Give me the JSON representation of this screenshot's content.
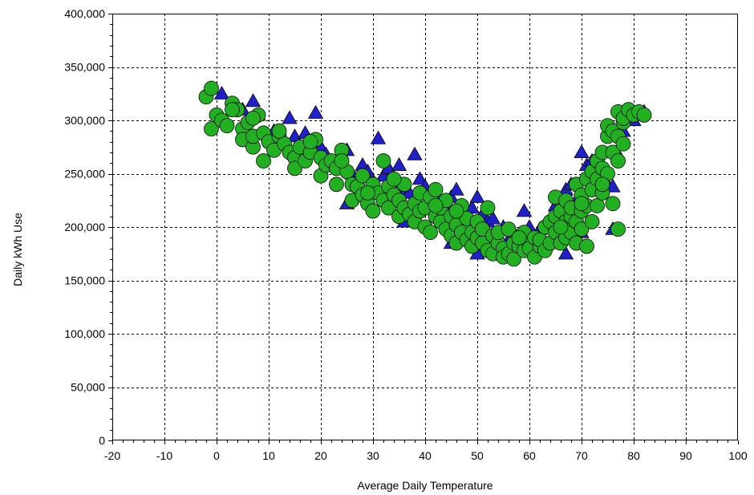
{
  "chart_data": {
    "type": "scatter",
    "title": "",
    "xlabel": "Average Daily Temperature",
    "ylabel": "Daily kWh Use",
    "xlim": [
      -20,
      100
    ],
    "ylim": [
      0,
      400000
    ],
    "x_ticks": [
      -20,
      -10,
      0,
      10,
      20,
      30,
      40,
      50,
      60,
      70,
      80,
      90,
      100
    ],
    "x_tick_labels": [
      "-20",
      "-10",
      "0",
      "10",
      "20",
      "30",
      "40",
      "50",
      "60",
      "70",
      "80",
      "90",
      "100"
    ],
    "y_ticks": [
      0,
      50000,
      100000,
      150000,
      200000,
      250000,
      300000,
      350000,
      400000
    ],
    "y_tick_labels": [
      "0",
      "50,000",
      "100,000",
      "150,000",
      "200,000",
      "250,000",
      "300,000",
      "350,000",
      "400,000"
    ],
    "grid": true,
    "legend": "none",
    "colors": {
      "series_a": "#2020c8",
      "series_b": "#22b022",
      "marker_stroke": "#0a0a0a",
      "grid": "#000000"
    },
    "series": [
      {
        "marker": "triangle",
        "color": "#2020c8",
        "points": [
          [
            -1,
            330000
          ],
          [
            1,
            325000
          ],
          [
            3,
            315000
          ],
          [
            5,
            310000
          ],
          [
            7,
            318000
          ],
          [
            8,
            305000
          ],
          [
            10,
            285000
          ],
          [
            11,
            290000
          ],
          [
            12,
            280000
          ],
          [
            14,
            302000
          ],
          [
            15,
            285000
          ],
          [
            17,
            288000
          ],
          [
            19,
            307000
          ],
          [
            20,
            275000
          ],
          [
            21,
            268000
          ],
          [
            23,
            262000
          ],
          [
            24,
            255000
          ],
          [
            25,
            272000
          ],
          [
            26,
            250000
          ],
          [
            27,
            245000
          ],
          [
            28,
            258000
          ],
          [
            29,
            252000
          ],
          [
            30,
            240000
          ],
          [
            31,
            283000
          ],
          [
            32,
            248000
          ],
          [
            33,
            255000
          ],
          [
            34,
            242000
          ],
          [
            35,
            258000
          ],
          [
            36,
            235000
          ],
          [
            37,
            232000
          ],
          [
            38,
            268000
          ],
          [
            39,
            245000
          ],
          [
            40,
            238000
          ],
          [
            41,
            225000
          ],
          [
            42,
            230000
          ],
          [
            43,
            222000
          ],
          [
            44,
            218000
          ],
          [
            45,
            228000
          ],
          [
            46,
            235000
          ],
          [
            47,
            215000
          ],
          [
            48,
            210000
          ],
          [
            49,
            218000
          ],
          [
            50,
            228000
          ],
          [
            51,
            212000
          ],
          [
            52,
            205000
          ],
          [
            53,
            208000
          ],
          [
            55,
            200000
          ],
          [
            57,
            195000
          ],
          [
            59,
            215000
          ],
          [
            60,
            200000
          ],
          [
            62,
            198000
          ],
          [
            64,
            205000
          ],
          [
            65,
            220000
          ],
          [
            66,
            215000
          ],
          [
            67,
            235000
          ],
          [
            68,
            240000
          ],
          [
            69,
            225000
          ],
          [
            70,
            270000
          ],
          [
            71,
            258000
          ],
          [
            72,
            262000
          ],
          [
            73,
            248000
          ],
          [
            74,
            255000
          ],
          [
            75,
            240000
          ],
          [
            76,
            238000
          ],
          [
            77,
            268000
          ],
          [
            78,
            290000
          ],
          [
            80,
            300000
          ],
          [
            82,
            308000
          ],
          [
            25,
            222000
          ],
          [
            36,
            205000
          ],
          [
            50,
            175000
          ],
          [
            67,
            175000
          ],
          [
            76,
            198000
          ],
          [
            62,
            178000
          ],
          [
            45,
            185000
          ],
          [
            56,
            188000
          ],
          [
            70,
            195000
          ]
        ]
      },
      {
        "marker": "circle",
        "color": "#22b022",
        "points": [
          [
            -2,
            322000
          ],
          [
            -1,
            330000
          ],
          [
            -1,
            292000
          ],
          [
            0,
            305000
          ],
          [
            1,
            300000
          ],
          [
            2,
            295000
          ],
          [
            3,
            316000
          ],
          [
            4,
            310000
          ],
          [
            5,
            292000
          ],
          [
            5,
            282000
          ],
          [
            6,
            298000
          ],
          [
            7,
            275000
          ],
          [
            7,
            285000
          ],
          [
            8,
            305000
          ],
          [
            9,
            288000
          ],
          [
            9,
            262000
          ],
          [
            10,
            280000
          ],
          [
            11,
            272000
          ],
          [
            12,
            285000
          ],
          [
            13,
            278000
          ],
          [
            14,
            270000
          ],
          [
            15,
            265000
          ],
          [
            15,
            255000
          ],
          [
            16,
            275000
          ],
          [
            17,
            262000
          ],
          [
            18,
            270000
          ],
          [
            19,
            282000
          ],
          [
            20,
            248000
          ],
          [
            20,
            265000
          ],
          [
            21,
            258000
          ],
          [
            22,
            262000
          ],
          [
            23,
            255000
          ],
          [
            23,
            240000
          ],
          [
            24,
            272000
          ],
          [
            25,
            252000
          ],
          [
            26,
            240000
          ],
          [
            26,
            225000
          ],
          [
            27,
            238000
          ],
          [
            28,
            248000
          ],
          [
            28,
            230000
          ],
          [
            29,
            222000
          ],
          [
            30,
            240000
          ],
          [
            30,
            215000
          ],
          [
            31,
            232000
          ],
          [
            32,
            262000
          ],
          [
            32,
            225000
          ],
          [
            33,
            218000
          ],
          [
            33,
            238000
          ],
          [
            34,
            230000
          ],
          [
            35,
            210000
          ],
          [
            35,
            225000
          ],
          [
            36,
            218000
          ],
          [
            36,
            240000
          ],
          [
            37,
            212000
          ],
          [
            38,
            222000
          ],
          [
            38,
            205000
          ],
          [
            39,
            215000
          ],
          [
            39,
            232000
          ],
          [
            40,
            200000
          ],
          [
            40,
            218000
          ],
          [
            41,
            228000
          ],
          [
            41,
            195000
          ],
          [
            42,
            210000
          ],
          [
            42,
            235000
          ],
          [
            43,
            205000
          ],
          [
            43,
            218000
          ],
          [
            44,
            198000
          ],
          [
            44,
            225000
          ],
          [
            45,
            192000
          ],
          [
            45,
            210000
          ],
          [
            46,
            185000
          ],
          [
            46,
            202000
          ],
          [
            47,
            195000
          ],
          [
            47,
            220000
          ],
          [
            48,
            188000
          ],
          [
            48,
            208000
          ],
          [
            49,
            195000
          ],
          [
            49,
            182000
          ],
          [
            50,
            205000
          ],
          [
            50,
            190000
          ],
          [
            51,
            185000
          ],
          [
            51,
            198000
          ],
          [
            52,
            178000
          ],
          [
            52,
            218000
          ],
          [
            53,
            192000
          ],
          [
            53,
            175000
          ],
          [
            54,
            185000
          ],
          [
            54,
            195000
          ],
          [
            55,
            180000
          ],
          [
            55,
            172000
          ],
          [
            56,
            198000
          ],
          [
            56,
            175000
          ],
          [
            57,
            185000
          ],
          [
            57,
            170000
          ],
          [
            58,
            182000
          ],
          [
            59,
            178000
          ],
          [
            59,
            195000
          ],
          [
            60,
            185000
          ],
          [
            60,
            180000
          ],
          [
            61,
            172000
          ],
          [
            61,
            190000
          ],
          [
            62,
            182000
          ],
          [
            62,
            188000
          ],
          [
            63,
            200000
          ],
          [
            63,
            178000
          ],
          [
            64,
            205000
          ],
          [
            64,
            185000
          ],
          [
            65,
            228000
          ],
          [
            65,
            210000
          ],
          [
            65,
            195000
          ],
          [
            66,
            215000
          ],
          [
            66,
            185000
          ],
          [
            67,
            205000
          ],
          [
            67,
            190000
          ],
          [
            67,
            225000
          ],
          [
            68,
            210000
          ],
          [
            68,
            195000
          ],
          [
            68,
            218000
          ],
          [
            69,
            240000
          ],
          [
            69,
            205000
          ],
          [
            69,
            185000
          ],
          [
            70,
            215000
          ],
          [
            70,
            198000
          ],
          [
            70,
            230000
          ],
          [
            71,
            245000
          ],
          [
            71,
            220000
          ],
          [
            71,
            182000
          ],
          [
            72,
            235000
          ],
          [
            72,
            205000
          ],
          [
            72,
            252000
          ],
          [
            73,
            262000
          ],
          [
            73,
            245000
          ],
          [
            73,
            220000
          ],
          [
            74,
            255000
          ],
          [
            74,
            270000
          ],
          [
            74,
            232000
          ],
          [
            75,
            285000
          ],
          [
            75,
            295000
          ],
          [
            75,
            250000
          ],
          [
            76,
            290000
          ],
          [
            76,
            270000
          ],
          [
            76,
            222000
          ],
          [
            77,
            308000
          ],
          [
            77,
            285000
          ],
          [
            77,
            198000
          ],
          [
            77,
            262000
          ],
          [
            78,
            298000
          ],
          [
            78,
            302000
          ],
          [
            79,
            310000
          ],
          [
            80,
            305000
          ],
          [
            81,
            308000
          ],
          [
            82,
            305000
          ],
          [
            78,
            278000
          ],
          [
            74,
            240000
          ],
          [
            70,
            222000
          ],
          [
            66,
            200000
          ],
          [
            58,
            190000
          ],
          [
            46,
            215000
          ],
          [
            42,
            220000
          ],
          [
            34,
            245000
          ],
          [
            29,
            232000
          ],
          [
            24,
            262000
          ],
          [
            18,
            280000
          ],
          [
            12,
            290000
          ],
          [
            7,
            302000
          ],
          [
            3,
            310000
          ]
        ]
      }
    ]
  }
}
